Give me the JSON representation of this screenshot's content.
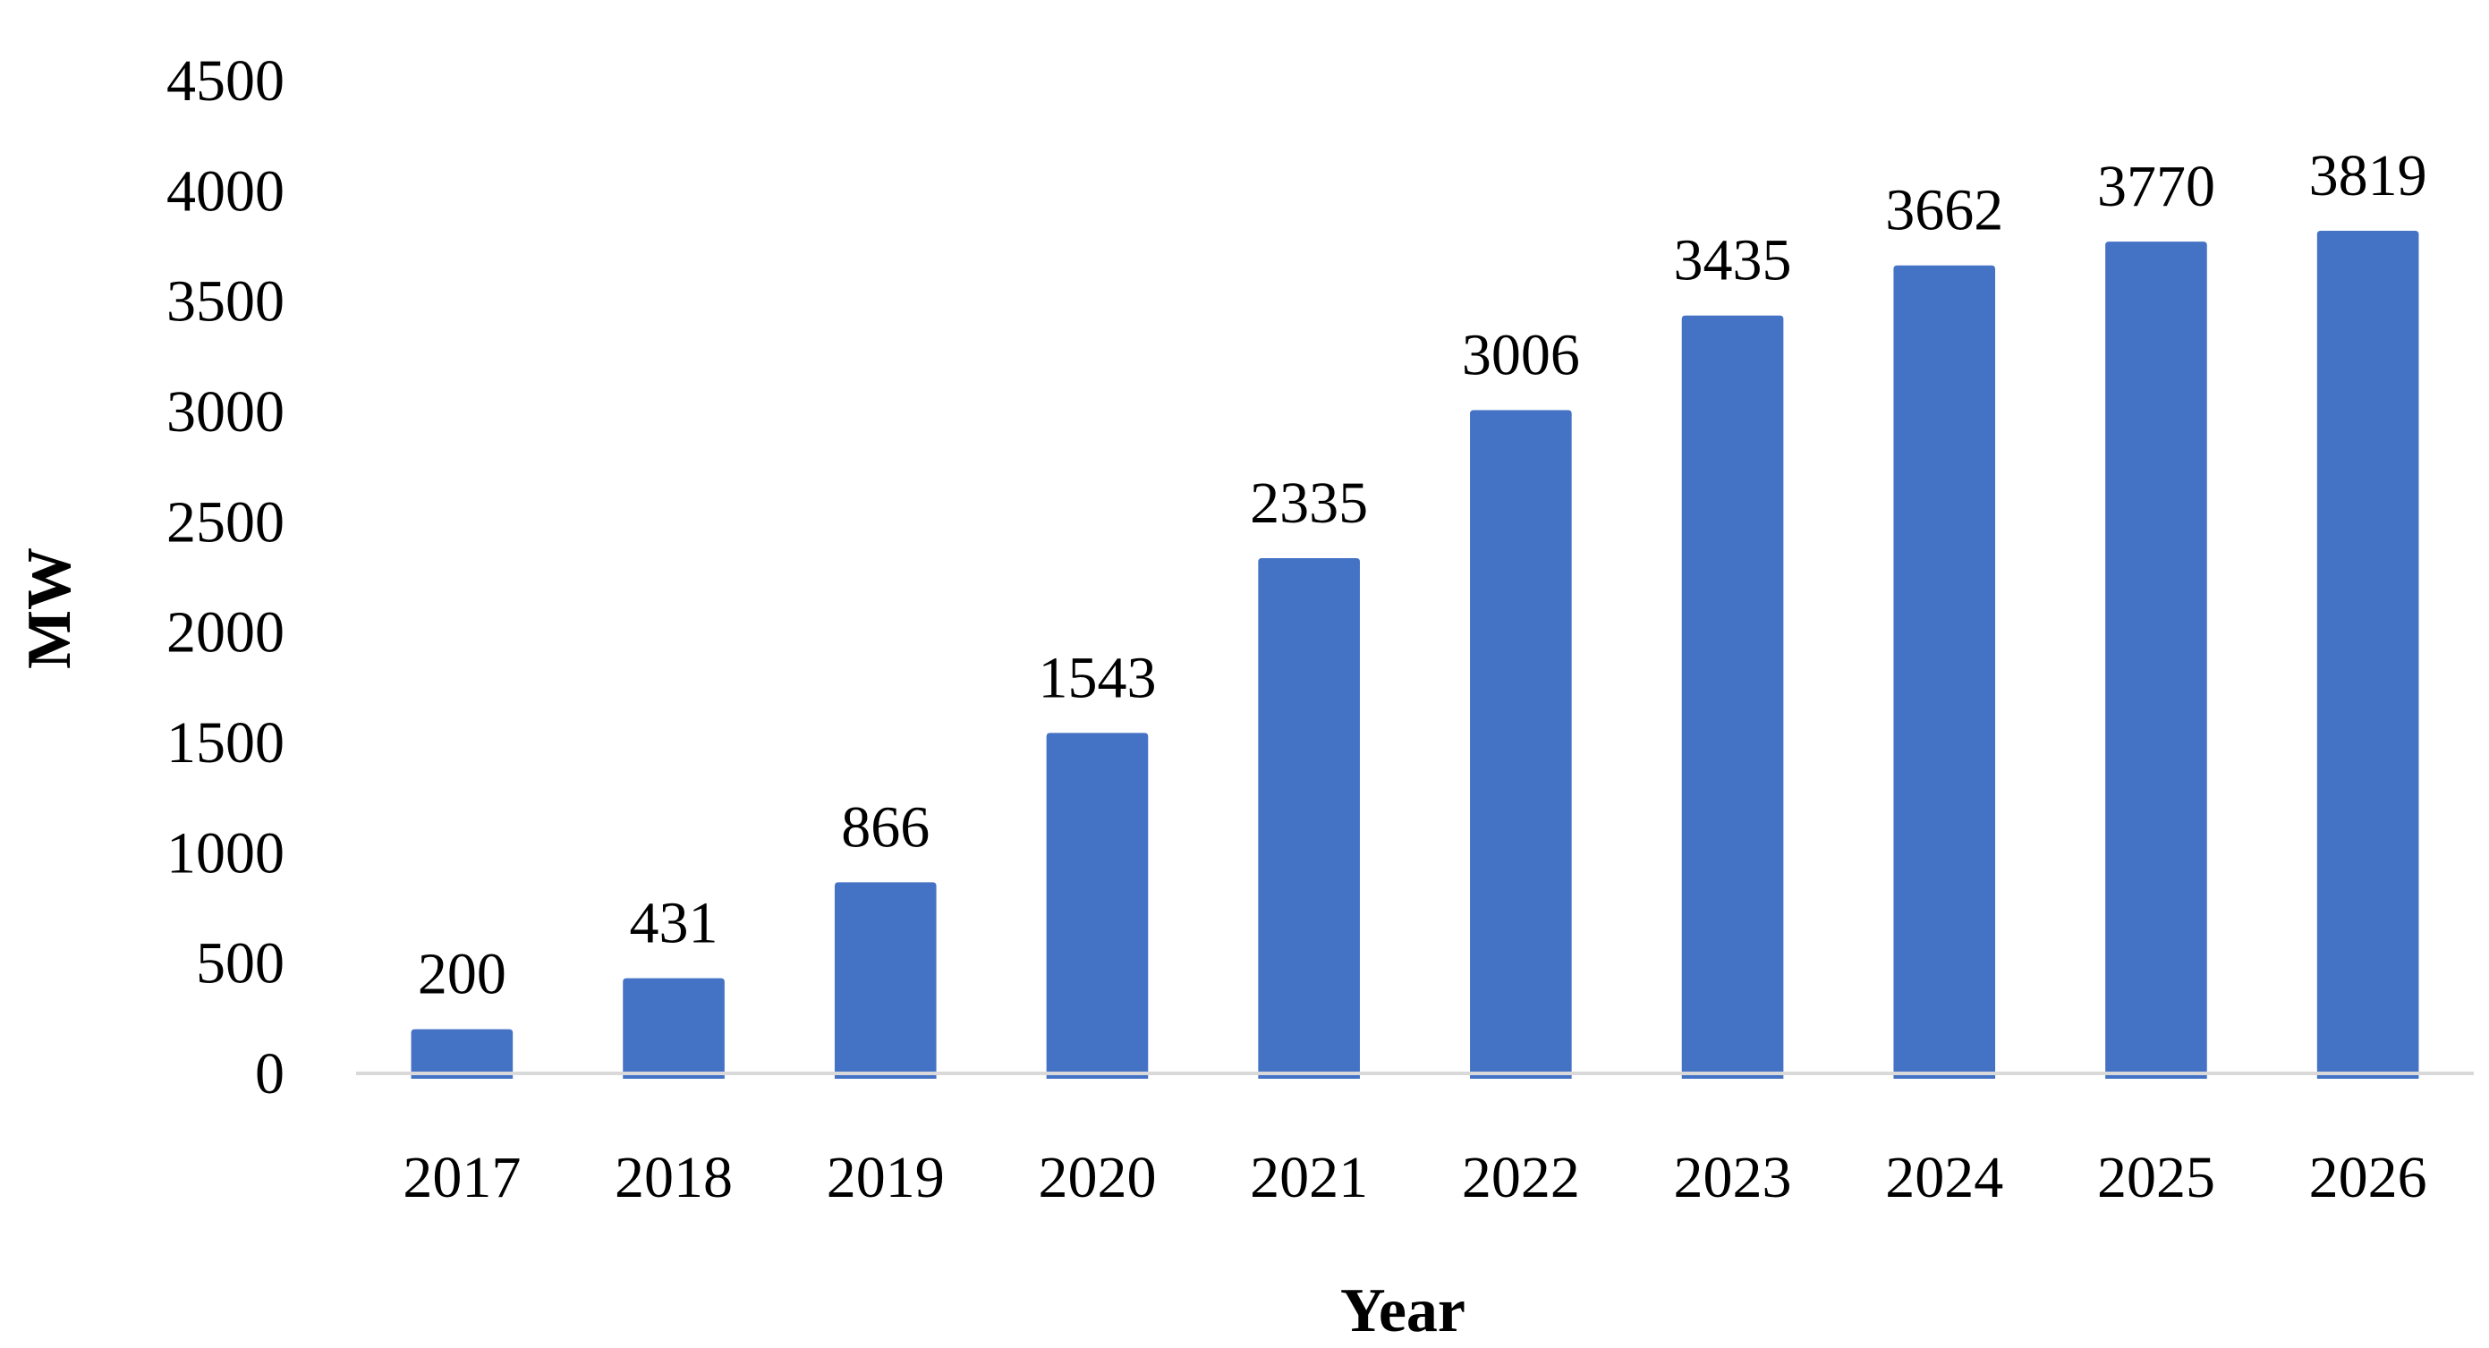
{
  "chart_data": {
    "type": "bar",
    "title": "",
    "xlabel": "Year",
    "ylabel": "MW",
    "categories": [
      "2017",
      "2018",
      "2019",
      "2020",
      "2021",
      "2022",
      "2023",
      "2024",
      "2025",
      "2026"
    ],
    "values": [
      200,
      431,
      866,
      1543,
      2335,
      3006,
      3435,
      3662,
      3770,
      3819
    ],
    "data_labels": [
      "200",
      "431",
      "866",
      "1543",
      "2335",
      "3006",
      "3435",
      "3662",
      "3770",
      "3819"
    ],
    "ylim": [
      0,
      4500
    ],
    "yticks": [
      "0",
      "500",
      "1000",
      "1500",
      "2000",
      "2500",
      "3000",
      "3500",
      "4000",
      "4500"
    ],
    "grid": false,
    "legend": "none",
    "colors": {
      "bar": "#4472C4",
      "axis": "#D9D9D9",
      "text": "#000000"
    }
  }
}
